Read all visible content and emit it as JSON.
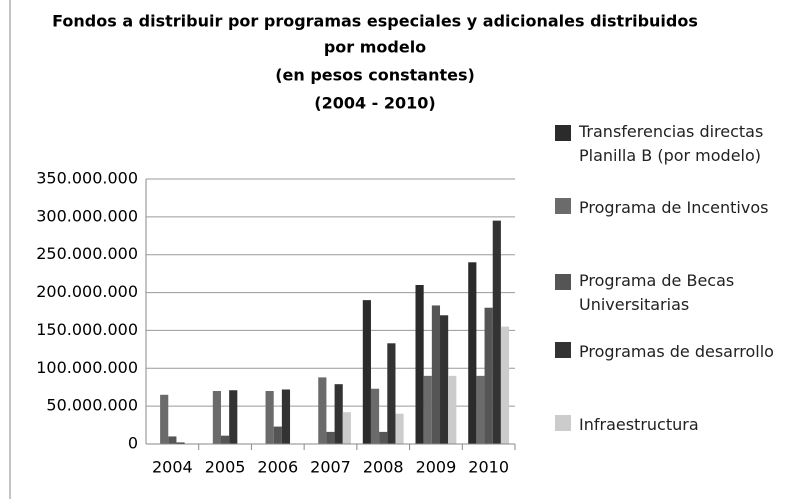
{
  "chart_data": {
    "type": "bar",
    "title": [
      "Fondos a distribuir por programas especiales y adicionales  distribuidos",
      "por  modelo",
      "(en pesos constantes)",
      "(2004 - 2010)"
    ],
    "categories": [
      "2004",
      "2005",
      "2006",
      "2007",
      "2008",
      "2009",
      "2010"
    ],
    "series": [
      {
        "name": "Transferencias directas Planilla B (por modelo)",
        "color": "#2b2b2b",
        "values": [
          0,
          0,
          0,
          0,
          190000000,
          210000000,
          240000000
        ]
      },
      {
        "name": "Programa de Incentivos",
        "color": "#6b6b6b",
        "values": [
          65000000,
          70000000,
          70000000,
          88000000,
          73000000,
          90000000,
          90000000
        ]
      },
      {
        "name": "Programa de Becas Universitarias",
        "color": "#555555",
        "values": [
          10000000,
          11000000,
          23000000,
          16000000,
          16000000,
          183000000,
          180000000
        ]
      },
      {
        "name": "Programas de desarrollo",
        "color": "#333333",
        "values": [
          2000000,
          71000000,
          72000000,
          79000000,
          133000000,
          170000000,
          295000000
        ]
      },
      {
        "name": "Infraestructura",
        "color": "#cccccc",
        "values": [
          0,
          0,
          0,
          42000000,
          40000000,
          90000000,
          155000000
        ]
      }
    ],
    "ylim": [
      0,
      350000000
    ],
    "yticks": [
      0,
      {
        "value": 50000000,
        "label": "50.000.000"
      },
      {
        "value": 100000000,
        "label": "100.000.000"
      },
      {
        "value": 150000000,
        "label": "150.000.000"
      },
      {
        "value": 200000000,
        "label": "200.000.000"
      },
      {
        "value": 250000000,
        "label": "250.000.000"
      },
      {
        "value": 300000000,
        "label": "300.000.000"
      },
      {
        "value": 350000000,
        "label": "350.000.000"
      }
    ],
    "grid": true
  }
}
